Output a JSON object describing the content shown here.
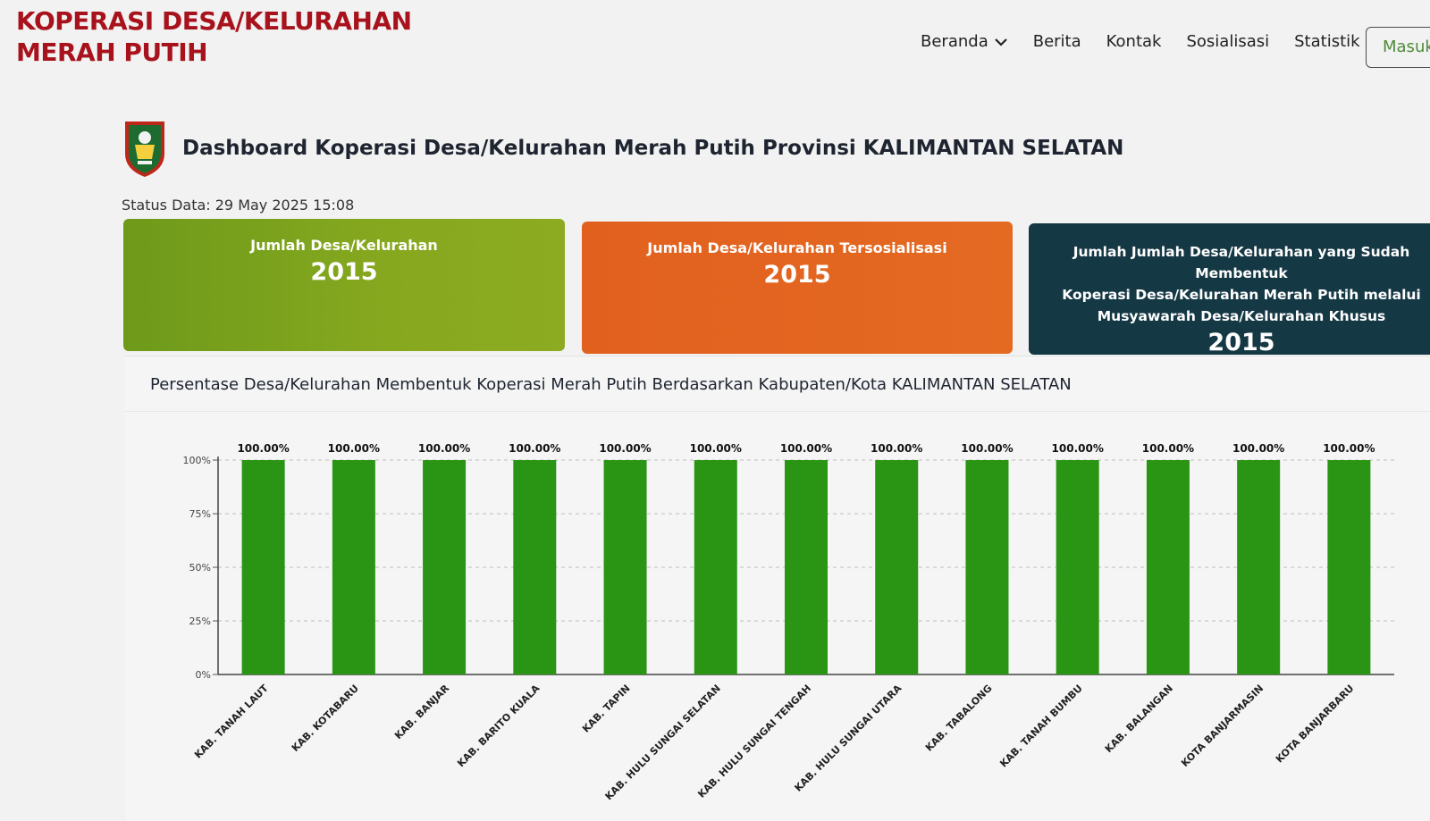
{
  "header": {
    "brand_line1": "KOPERASI DESA/KELURAHAN",
    "brand_line2": "MERAH PUTIH",
    "nav": [
      {
        "label": "Beranda",
        "icon": "chevron-down-icon"
      },
      {
        "label": "Berita"
      },
      {
        "label": "Kontak"
      },
      {
        "label": "Sosialisasi"
      },
      {
        "label": "Statistik"
      }
    ],
    "login_label": "Masuk"
  },
  "dashboard": {
    "title": "Dashboard Koperasi Desa/Kelurahan Merah Putih Provinsi KALIMANTAN SELATAN",
    "status": "Status Data: 29 May 2025 15:08",
    "cards": [
      {
        "label": "Jumlah Desa/Kelurahan",
        "value": "2015",
        "color": "#7fa31d"
      },
      {
        "label": "Jumlah Desa/Kelurahan Tersosialisasi",
        "value": "2015",
        "color": "#e3651f"
      },
      {
        "label_lines": [
          "Jumlah Jumlah Desa/Kelurahan yang Sudah Membentuk",
          "Koperasi Desa/Kelurahan Merah Putih melalui",
          "Musyawarah Desa/Kelurahan Khusus"
        ],
        "value": "2015",
        "color": "#153845"
      }
    ],
    "chart_title": "Persentase Desa/Kelurahan Membentuk Koperasi Merah Putih Berdasarkan Kabupaten/Kota KALIMANTAN SELATAN"
  },
  "chart_data": {
    "type": "bar",
    "categories": [
      "KAB. TANAH LAUT",
      "KAB. KOTABARU",
      "KAB. BANJAR",
      "KAB. BARITO KUALA",
      "KAB. TAPIN",
      "KAB. HULU SUNGAI SELATAN",
      "KAB. HULU SUNGAI TENGAH",
      "KAB. HULU SUNGAI UTARA",
      "KAB. TABALONG",
      "KAB. TANAH BUMBU",
      "KAB. BALANGAN",
      "KOTA BANJARMASIN",
      "KOTA BANJARBARU"
    ],
    "values": [
      100,
      100,
      100,
      100,
      100,
      100,
      100,
      100,
      100,
      100,
      100,
      100,
      100
    ],
    "data_labels": [
      "100.00%",
      "100.00%",
      "100.00%",
      "100.00%",
      "100.00%",
      "100.00%",
      "100.00%",
      "100.00%",
      "100.00%",
      "100.00%",
      "100.00%",
      "100.00%",
      "100.00%"
    ],
    "y_ticks": [
      "0%",
      "25%",
      "50%",
      "75%",
      "100%"
    ],
    "ylim": [
      0,
      100
    ],
    "grid": true,
    "bar_color": "#2a9414"
  }
}
